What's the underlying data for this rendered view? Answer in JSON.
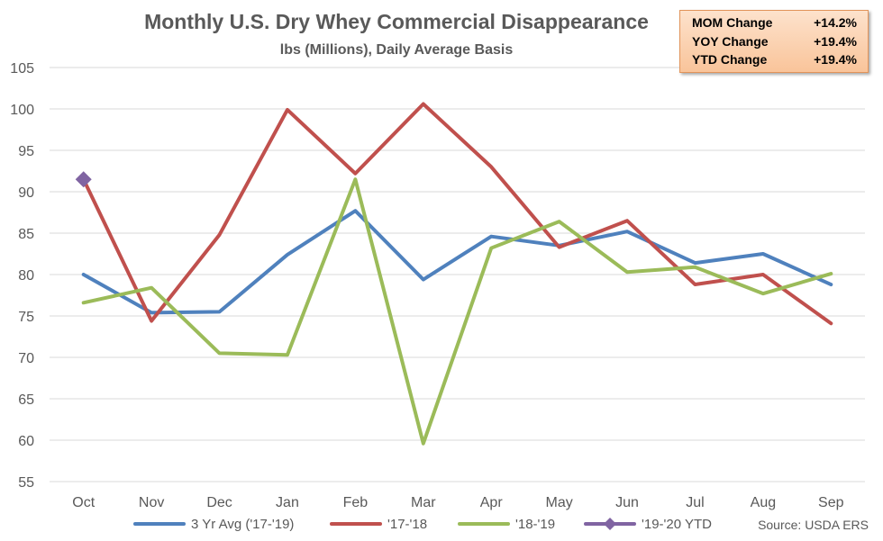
{
  "chart_data": {
    "type": "line",
    "title": "Monthly U.S. Dry Whey Commercial Disappearance",
    "subtitle": "lbs (Millions), Daily Average Basis",
    "categories": [
      "Oct",
      "Nov",
      "Dec",
      "Jan",
      "Feb",
      "Mar",
      "Apr",
      "May",
      "Jun",
      "Jul",
      "Aug",
      "Sep"
    ],
    "ylim": [
      55,
      105
    ],
    "yticks": [
      55,
      60,
      65,
      70,
      75,
      80,
      85,
      90,
      95,
      100,
      105
    ],
    "grid": true,
    "legend_position": "bottom",
    "series": [
      {
        "name": "3 Yr Avg ('17-'19)",
        "color": "#4f81bd",
        "marker": "none",
        "values": [
          80.0,
          75.4,
          75.5,
          82.4,
          87.7,
          79.4,
          84.6,
          83.5,
          85.2,
          81.4,
          82.5,
          78.8
        ]
      },
      {
        "name": "'17-'18",
        "color": "#c0504d",
        "marker": "none",
        "values": [
          91.5,
          74.4,
          84.8,
          99.9,
          92.2,
          100.6,
          93.0,
          83.3,
          86.5,
          78.8,
          80.0,
          74.1
        ]
      },
      {
        "name": "'18-'19",
        "color": "#9bbb59",
        "marker": "none",
        "values": [
          76.6,
          78.4,
          70.5,
          70.3,
          91.5,
          59.6,
          83.2,
          86.4,
          80.3,
          80.9,
          77.7,
          80.1
        ]
      },
      {
        "name": "'19-'20 YTD",
        "color": "#8064a2",
        "marker": "diamond",
        "values": [
          91.5,
          null,
          null,
          null,
          null,
          null,
          null,
          null,
          null,
          null,
          null,
          null
        ]
      }
    ],
    "source": "Source: USDA ERS"
  },
  "changes": [
    {
      "label": "MOM Change",
      "value": "+14.2%"
    },
    {
      "label": "YOY Change",
      "value": "+19.4%"
    },
    {
      "label": "YTD Change",
      "value": "+19.4%"
    }
  ]
}
